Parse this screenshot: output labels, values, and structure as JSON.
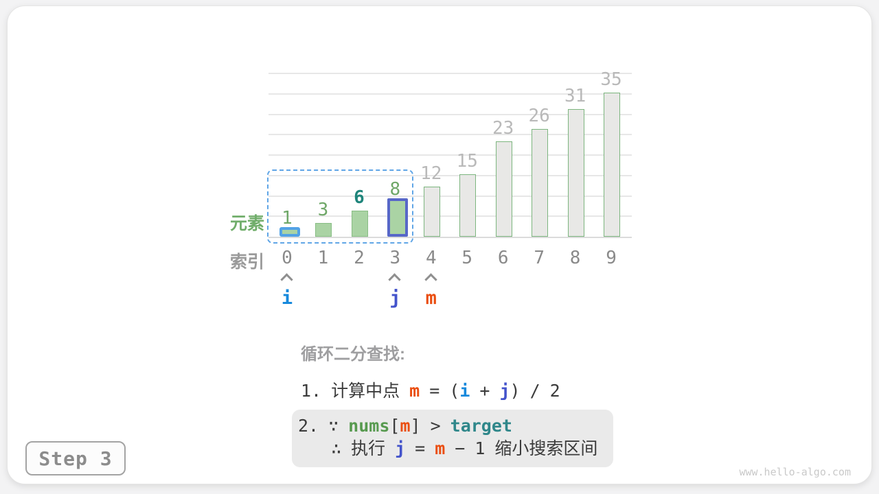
{
  "page": {
    "step_badge": "Step 3",
    "watermark": "www.hello-algo.com"
  },
  "chart_data": {
    "type": "bar",
    "title": "",
    "xlabel": "",
    "ylabel": "",
    "categories": [
      "0",
      "1",
      "2",
      "3",
      "4",
      "5",
      "6",
      "7",
      "8",
      "9"
    ],
    "values": [
      1,
      3,
      6,
      8,
      12,
      15,
      23,
      26,
      31,
      35
    ],
    "ylim": [
      0,
      40
    ],
    "gridline_step": 5,
    "grid": true,
    "legend_position": "none",
    "bar_roles": [
      "active-blue-border",
      "active",
      "active",
      "active-indigo-border",
      "inactive",
      "inactive",
      "inactive",
      "inactive",
      "inactive",
      "inactive"
    ],
    "value_label_roles": [
      "green",
      "green",
      "teal-bold",
      "green",
      "gray",
      "gray",
      "gray",
      "gray",
      "gray",
      "gray"
    ],
    "selection_range": [
      0,
      3
    ],
    "axis_left_labels": {
      "elements": "元素",
      "indices": "索引"
    },
    "pointers": [
      {
        "index": 0,
        "label": "i",
        "color": "#1789dc"
      },
      {
        "index": 3,
        "label": "j",
        "color": "#4353cb"
      },
      {
        "index": 4,
        "label": "m",
        "color": "#ea4e11"
      }
    ]
  },
  "colors": {
    "bar_green_fill": "#aad3a4",
    "bar_green_border": "#88bd84",
    "bar_gray_fill": "#e8e8e6",
    "bar_gray_border": "#7cb57e",
    "highlight_blue": "#52a2e6",
    "highlight_indigo": "#5767c8",
    "selection_dashed": "#5fa5e6",
    "pointer_i": "#1789dc",
    "pointer_j": "#4353cb",
    "pointer_m": "#ea4e11",
    "code_nums_green": "#579a4f",
    "code_target_teal": "#2f878a",
    "label_green": "#6fa768",
    "label_teal": "#1f857b",
    "label_gray": "#b9b9b9"
  },
  "text": {
    "section_title": "循环二分查找:",
    "step1": {
      "num": "1.",
      "label": "计算中点",
      "m": "m",
      "eq": "=",
      "open": "(",
      "i": "i",
      "plus": "+",
      "j": "j",
      "close": ")",
      "slash": "/",
      "two": "2"
    },
    "step2": {
      "num": "2.",
      "because": "∵",
      "nums": "nums",
      "lbracket": "[",
      "m": "m",
      "rbracket": "]",
      "gt": ">",
      "target": "target",
      "therefore": "∴",
      "exec": "执行",
      "j": "j",
      "eq": "=",
      "m2": "m",
      "minus": "−",
      "one": "1",
      "suffix": "缩小搜索区间"
    }
  }
}
